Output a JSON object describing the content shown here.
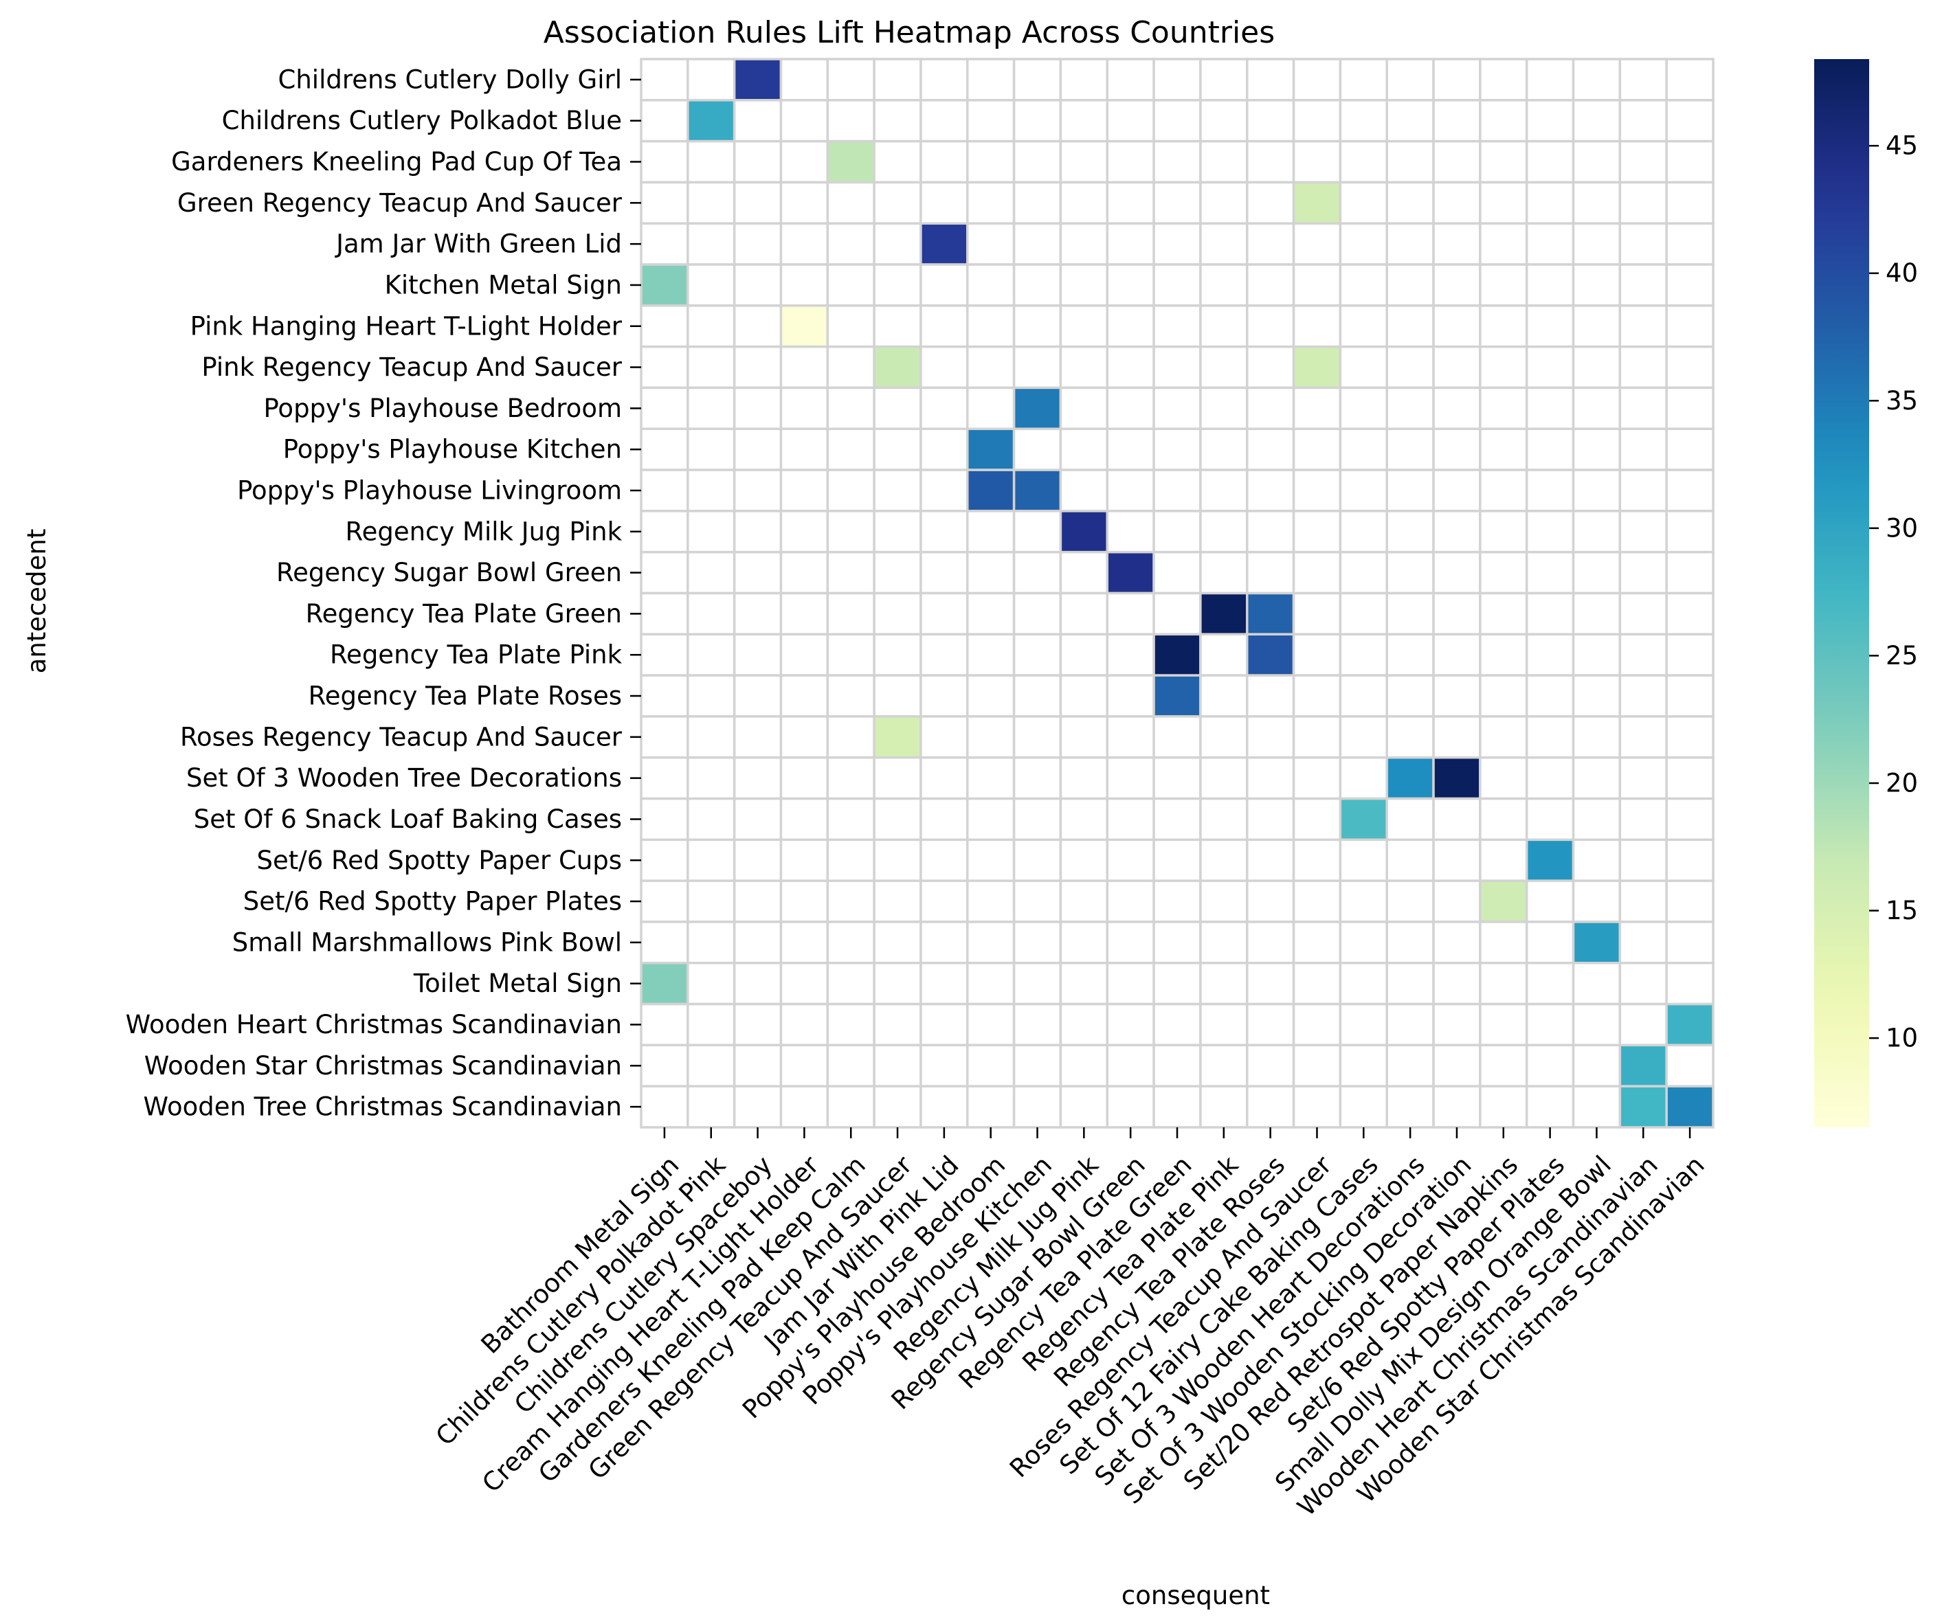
{
  "chart_data": {
    "type": "heatmap",
    "title": "Association Rules Lift Heatmap Across Countries",
    "xlabel": "consequent",
    "ylabel": "antecedent",
    "colormap": "YlGnBu",
    "color_range": [
      6.5,
      48.4
    ],
    "colorbar_ticks": [
      10,
      15,
      20,
      25,
      30,
      35,
      40,
      45
    ],
    "grid_line_color": "#d3d3d3",
    "missing_cell_color": "#ffffff",
    "rows": [
      "Childrens Cutlery Dolly Girl",
      "Childrens Cutlery Polkadot Blue",
      "Gardeners Kneeling Pad Cup Of Tea",
      "Green Regency Teacup And Saucer",
      "Jam Jar With Green Lid",
      "Kitchen Metal Sign",
      "Pink Hanging Heart T-Light Holder",
      "Pink Regency Teacup And Saucer",
      "Poppy's Playhouse Bedroom",
      "Poppy's Playhouse Kitchen",
      "Poppy's Playhouse Livingroom",
      "Regency Milk Jug Pink",
      "Regency Sugar Bowl Green",
      "Regency Tea Plate Green",
      "Regency Tea Plate Pink",
      "Regency Tea Plate Roses",
      "Roses Regency Teacup And Saucer",
      "Set Of 3 Wooden Tree Decorations",
      "Set Of 6 Snack Loaf Baking Cases",
      "Set/6 Red Spotty Paper Cups",
      "Set/6 Red Spotty Paper Plates",
      "Small Marshmallows Pink Bowl",
      "Toilet Metal Sign",
      "Wooden Heart Christmas Scandinavian",
      "Wooden Star Christmas Scandinavian",
      "Wooden Tree Christmas Scandinavian"
    ],
    "columns": [
      "Bathroom Metal Sign",
      "Childrens Cutlery Polkadot Pink",
      "Childrens Cutlery Spaceboy",
      "Cream Hanging Heart T-Light Holder",
      "Gardeners Kneeling Pad Keep Calm",
      "Green Regency Teacup And Saucer",
      "Jam Jar With Pink Lid",
      "Poppy's Playhouse Bedroom",
      "Poppy's Playhouse Kitchen",
      "Regency Milk Jug Pink",
      "Regency Sugar Bowl Green",
      "Regency Tea Plate Green",
      "Regency Tea Plate Pink",
      "Regency Tea Plate Roses",
      "Roses Regency Teacup And Saucer",
      "Set Of 12 Fairy Cake Baking Cases",
      "Set Of 3 Wooden Heart Decorations",
      "Set Of 3 Wooden Stocking Decoration",
      "Set/20 Red Retrospot Paper Napkins",
      "Set/6 Red Spotty Paper Plates",
      "Small Dolly Mix Design Orange Bowl",
      "Wooden Heart Christmas Scandinavian",
      "Wooden Star Christmas Scandinavian"
    ],
    "cells": [
      {
        "row": 0,
        "col": 2,
        "value": 42.5
      },
      {
        "row": 1,
        "col": 1,
        "value": 29.0
      },
      {
        "row": 2,
        "col": 4,
        "value": 17.5
      },
      {
        "row": 3,
        "col": 14,
        "value": 15.5
      },
      {
        "row": 4,
        "col": 6,
        "value": 42.5
      },
      {
        "row": 5,
        "col": 0,
        "value": 22.0
      },
      {
        "row": 6,
        "col": 3,
        "value": 7.0
      },
      {
        "row": 7,
        "col": 5,
        "value": 16.5
      },
      {
        "row": 7,
        "col": 14,
        "value": 15.5
      },
      {
        "row": 8,
        "col": 8,
        "value": 35.0
      },
      {
        "row": 9,
        "col": 7,
        "value": 35.0
      },
      {
        "row": 10,
        "col": 7,
        "value": 38.5
      },
      {
        "row": 10,
        "col": 8,
        "value": 37.5
      },
      {
        "row": 11,
        "col": 9,
        "value": 44.0
      },
      {
        "row": 12,
        "col": 10,
        "value": 44.0
      },
      {
        "row": 13,
        "col": 12,
        "value": 48.0
      },
      {
        "row": 13,
        "col": 13,
        "value": 37.5
      },
      {
        "row": 14,
        "col": 11,
        "value": 48.0
      },
      {
        "row": 14,
        "col": 13,
        "value": 39.0
      },
      {
        "row": 15,
        "col": 11,
        "value": 37.5
      },
      {
        "row": 16,
        "col": 5,
        "value": 15.0
      },
      {
        "row": 17,
        "col": 16,
        "value": 33.0
      },
      {
        "row": 17,
        "col": 17,
        "value": 48.0
      },
      {
        "row": 18,
        "col": 15,
        "value": 26.5
      },
      {
        "row": 19,
        "col": 19,
        "value": 32.0
      },
      {
        "row": 20,
        "col": 18,
        "value": 16.0
      },
      {
        "row": 21,
        "col": 20,
        "value": 31.0
      },
      {
        "row": 22,
        "col": 0,
        "value": 22.0
      },
      {
        "row": 23,
        "col": 22,
        "value": 28.0
      },
      {
        "row": 24,
        "col": 21,
        "value": 28.5
      },
      {
        "row": 25,
        "col": 21,
        "value": 27.5
      },
      {
        "row": 25,
        "col": 22,
        "value": 34.0
      }
    ]
  }
}
